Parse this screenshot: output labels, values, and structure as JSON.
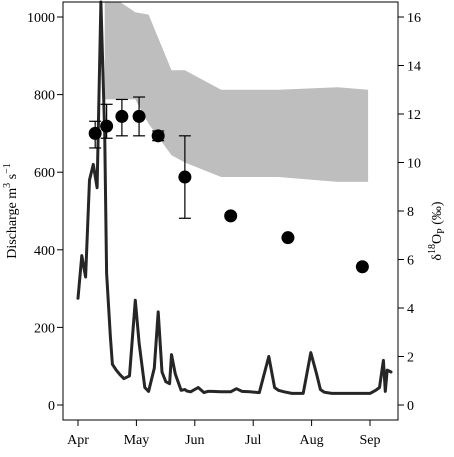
{
  "chart_data": {
    "type": "line",
    "xlabel": "",
    "x_categories": [
      "Apr",
      "May",
      "Jun",
      "Jul",
      "Aug",
      "Sep"
    ],
    "left_axis": {
      "label_main": "Discharge m",
      "label_sup1": "3",
      "label_mid": " s",
      "label_sup2": "−1",
      "ylim": [
        0,
        1000
      ],
      "ticks": [
        0,
        200,
        400,
        600,
        800,
        1000
      ]
    },
    "right_axis": {
      "label_main": "δ",
      "label_sup": "18",
      "label_o": "O",
      "label_sub": "P",
      "label_unit": " (‰)",
      "ylim": [
        0,
        16
      ],
      "ticks": [
        0,
        2,
        4,
        6,
        8,
        10,
        12,
        14,
        16
      ]
    },
    "band": {
      "color": "#bebebe",
      "axis": "right",
      "x": [
        "2014-04-15",
        "2014-04-23",
        "2014-05-01",
        "2014-05-08",
        "2014-05-20",
        "2014-05-27",
        "2014-06-15",
        "2014-07-15",
        "2014-08-15",
        "2014-08-31"
      ],
      "upper": [
        16.8,
        16.8,
        16.2,
        16.1,
        13.8,
        13.8,
        13.0,
        13.0,
        13.1,
        13.0
      ],
      "lower": [
        12.6,
        12.6,
        12.6,
        11.6,
        10.3,
        10.0,
        9.4,
        9.4,
        9.2,
        9.2
      ]
    },
    "discharge": {
      "color": "#262626",
      "axis": "left",
      "x": [
        "2014-04-01",
        "2014-04-03",
        "2014-04-05",
        "2014-04-07",
        "2014-04-09",
        "2014-04-11",
        "2014-04-13",
        "2014-04-15",
        "2014-04-16",
        "2014-04-18",
        "2014-04-19",
        "2014-04-21",
        "2014-04-23",
        "2014-04-25",
        "2014-04-28",
        "2014-05-01",
        "2014-05-03",
        "2014-05-06",
        "2014-05-08",
        "2014-05-11",
        "2014-05-13",
        "2014-05-15",
        "2014-05-17",
        "2014-05-19",
        "2014-05-20",
        "2014-05-22",
        "2014-05-25",
        "2014-05-27",
        "2014-05-28",
        "2014-05-30",
        "2014-06-03",
        "2014-06-06",
        "2014-06-08",
        "2014-06-10",
        "2014-06-15",
        "2014-06-20",
        "2014-06-23",
        "2014-06-26",
        "2014-06-30",
        "2014-07-05",
        "2014-07-10",
        "2014-07-13",
        "2014-07-15",
        "2014-07-18",
        "2014-07-22",
        "2014-07-28",
        "2014-08-01",
        "2014-08-04",
        "2014-08-06",
        "2014-08-08",
        "2014-08-12",
        "2014-08-18",
        "2014-08-25",
        "2014-09-01",
        "2014-09-04",
        "2014-09-06",
        "2014-09-08",
        "2014-09-09",
        "2014-09-10",
        "2014-09-12"
      ],
      "values": [
        275,
        385,
        330,
        580,
        620,
        560,
        1045,
        700,
        340,
        175,
        105,
        90,
        78,
        68,
        75,
        270,
        160,
        45,
        35,
        95,
        240,
        85,
        60,
        55,
        130,
        80,
        38,
        40,
        36,
        34,
        45,
        32,
        35,
        35,
        34,
        34,
        42,
        35,
        34,
        32,
        125,
        45,
        38,
        34,
        30,
        30,
        135,
        80,
        40,
        33,
        30,
        30,
        30,
        30,
        38,
        45,
        115,
        35,
        90,
        85
      ]
    },
    "isotope_points": {
      "color": "#000000",
      "axis": "right",
      "points": [
        {
          "x": "2014-04-10",
          "y": 11.2,
          "err_low": 10.6,
          "err_high": 11.7
        },
        {
          "x": "2014-04-16",
          "y": 11.5,
          "err_low": 11.0,
          "err_high": 12.4
        },
        {
          "x": "2014-04-24",
          "y": 11.9,
          "err_low": 11.1,
          "err_high": 12.6
        },
        {
          "x": "2014-05-03",
          "y": 11.9,
          "err_low": 11.1,
          "err_high": 12.7
        },
        {
          "x": "2014-05-13",
          "y": 11.1,
          "err_low": 10.9,
          "err_high": 11.3
        },
        {
          "x": "2014-05-27",
          "y": 9.4,
          "err_low": 7.7,
          "err_high": 11.1
        },
        {
          "x": "2014-06-20",
          "y": 7.8
        },
        {
          "x": "2014-07-20",
          "y": 6.9
        },
        {
          "x": "2014-08-28",
          "y": 5.7
        }
      ]
    }
  }
}
